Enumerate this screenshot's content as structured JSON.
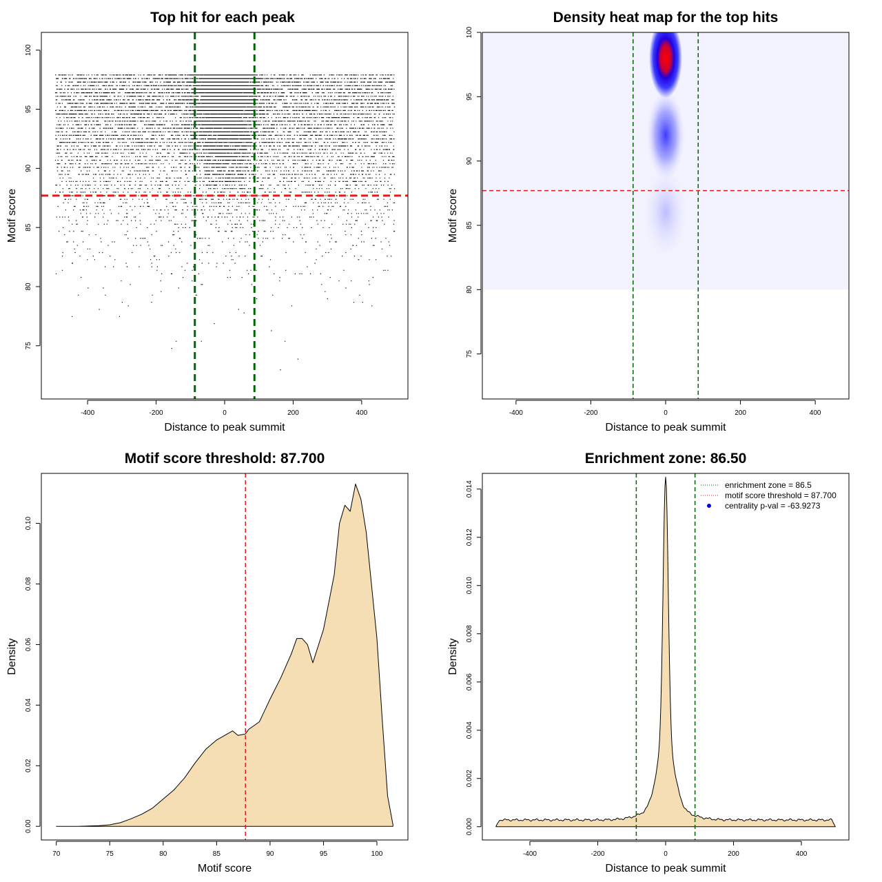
{
  "colors": {
    "threshold_line": "#e41a1c",
    "zone_line": "#006400",
    "density_fill": "#f5deb3",
    "heat_low": "#ffffff",
    "heat_mid": "#0000ff",
    "heat_high": "#ff0000",
    "centrality_dot": "#0000ff"
  },
  "chart_data": [
    {
      "id": "scatter",
      "type": "scatter",
      "title": "Top hit for each peak",
      "xlabel": "Distance to peak summit",
      "ylabel": "Motif score",
      "xlim": [
        -535,
        535
      ],
      "ylim": [
        70.5,
        101.5
      ],
      "xticks": [
        -400,
        -200,
        0,
        200,
        400
      ],
      "yticks": [
        75,
        80,
        85,
        90,
        95,
        100
      ],
      "zone_lines": [
        -87,
        87
      ],
      "threshold": 87.7,
      "points": {
        "n_background": 9000,
        "n_central": 6500,
        "x_range": [
          -495,
          495
        ],
        "central_x_sd": 45,
        "score_mode": 98,
        "score_sd": 4.5
      }
    },
    {
      "id": "heatmap",
      "type": "heatmap",
      "title": "Density heat map for the top hits",
      "xlabel": "Distance to peak summit",
      "ylabel": "Motif score",
      "xlim": [
        -490,
        490
      ],
      "ylim": [
        71.5,
        100
      ],
      "xticks": [
        -400,
        -200,
        0,
        200,
        400
      ],
      "yticks": [
        75,
        80,
        85,
        90,
        95,
        100
      ],
      "zone_lines": [
        -87,
        87
      ],
      "threshold": 87.7,
      "peak": {
        "x": 0,
        "y": 98
      }
    },
    {
      "id": "score-density",
      "type": "area",
      "title": "Motif score threshold: 87.700",
      "xlabel": "Motif score",
      "ylabel": "Density",
      "xlim": [
        68.6,
        102.9
      ],
      "ylim": [
        -0.0045,
        0.1165
      ],
      "xticks": [
        70,
        75,
        80,
        85,
        90,
        95,
        100
      ],
      "yticks": [
        0.0,
        0.02,
        0.04,
        0.06,
        0.08,
        0.1
      ],
      "ytick_labels": [
        "0.00",
        "0.02",
        "0.04",
        "0.06",
        "0.08",
        "0.10"
      ],
      "threshold": 87.7,
      "x": [
        70,
        72,
        74,
        75,
        76,
        77,
        78,
        79,
        80,
        81,
        82,
        83,
        84,
        85,
        86,
        86.5,
        87,
        87.7,
        88,
        89,
        90,
        91,
        92,
        92.5,
        93,
        93.5,
        94,
        95,
        96,
        96.5,
        97,
        97.5,
        98,
        98.5,
        99,
        100,
        100.5,
        101,
        101.5
      ],
      "y": [
        0.0,
        0.0,
        0.0002,
        0.0005,
        0.0012,
        0.0025,
        0.004,
        0.006,
        0.009,
        0.012,
        0.016,
        0.021,
        0.0255,
        0.0285,
        0.0305,
        0.0315,
        0.03,
        0.0305,
        0.032,
        0.0345,
        0.042,
        0.049,
        0.057,
        0.062,
        0.062,
        0.06,
        0.054,
        0.065,
        0.083,
        0.1,
        0.106,
        0.104,
        0.113,
        0.108,
        0.097,
        0.062,
        0.035,
        0.01,
        0.0005
      ]
    },
    {
      "id": "distance-density",
      "type": "area",
      "title": "Enrichment zone: 86.50",
      "xlabel": "Distance to peak summit",
      "ylabel": "Density",
      "xlim": [
        -540,
        540
      ],
      "ylim": [
        -0.00055,
        0.01465
      ],
      "xticks": [
        -400,
        -200,
        0,
        200,
        400
      ],
      "yticks": [
        0.0,
        0.002,
        0.004,
        0.006,
        0.008,
        0.01,
        0.012,
        0.014
      ],
      "ytick_labels": [
        "0.000",
        "0.002",
        "0.004",
        "0.006",
        "0.008",
        "0.010",
        "0.012",
        "0.014"
      ],
      "zone_lines": [
        -86.5,
        86.5
      ],
      "peak": {
        "x": 0,
        "y": 0.0141
      },
      "baseline_density": 0.00028,
      "legend": [
        {
          "label": "enrichment zone = 86.5",
          "style": "dotted",
          "color": "#006400"
        },
        {
          "label": "motif score threshold = 87.700",
          "style": "dotted",
          "color": "#e41a1c"
        },
        {
          "label": "centrality p-val = -63.9273",
          "style": "dot",
          "color": "#0000ff"
        }
      ]
    }
  ]
}
